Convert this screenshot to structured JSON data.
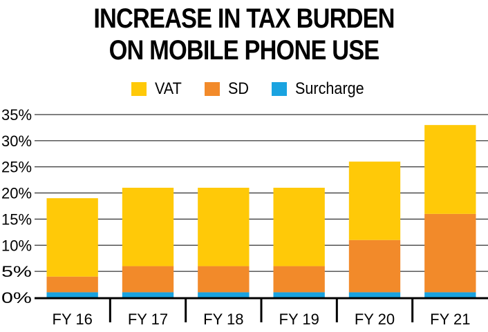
{
  "chart_data": {
    "type": "bar",
    "stacked": true,
    "title_lines": [
      "INCREASE IN TAX BURDEN",
      "ON MOBILE PHONE USE"
    ],
    "categories": [
      "FY 16",
      "FY 17",
      "FY 18",
      "FY 19",
      "FY 20",
      "FY 21"
    ],
    "series": [
      {
        "name": "Surcharge",
        "color": "#1aa3e0",
        "values": [
          1,
          1,
          1,
          1,
          1,
          1
        ]
      },
      {
        "name": "SD",
        "color": "#f28a2a",
        "values": [
          3,
          5,
          5,
          5,
          10,
          15
        ]
      },
      {
        "name": "VAT",
        "color": "#ffc908",
        "values": [
          15,
          15,
          15,
          15,
          15,
          17
        ]
      }
    ],
    "legend_order": [
      "VAT",
      "SD",
      "Surcharge"
    ],
    "legend_placement": "top-center",
    "ylim": [
      0,
      35
    ],
    "yticks": [
      0,
      5,
      10,
      15,
      20,
      25,
      30,
      35
    ],
    "ytick_suffix": "%",
    "grid": true
  }
}
